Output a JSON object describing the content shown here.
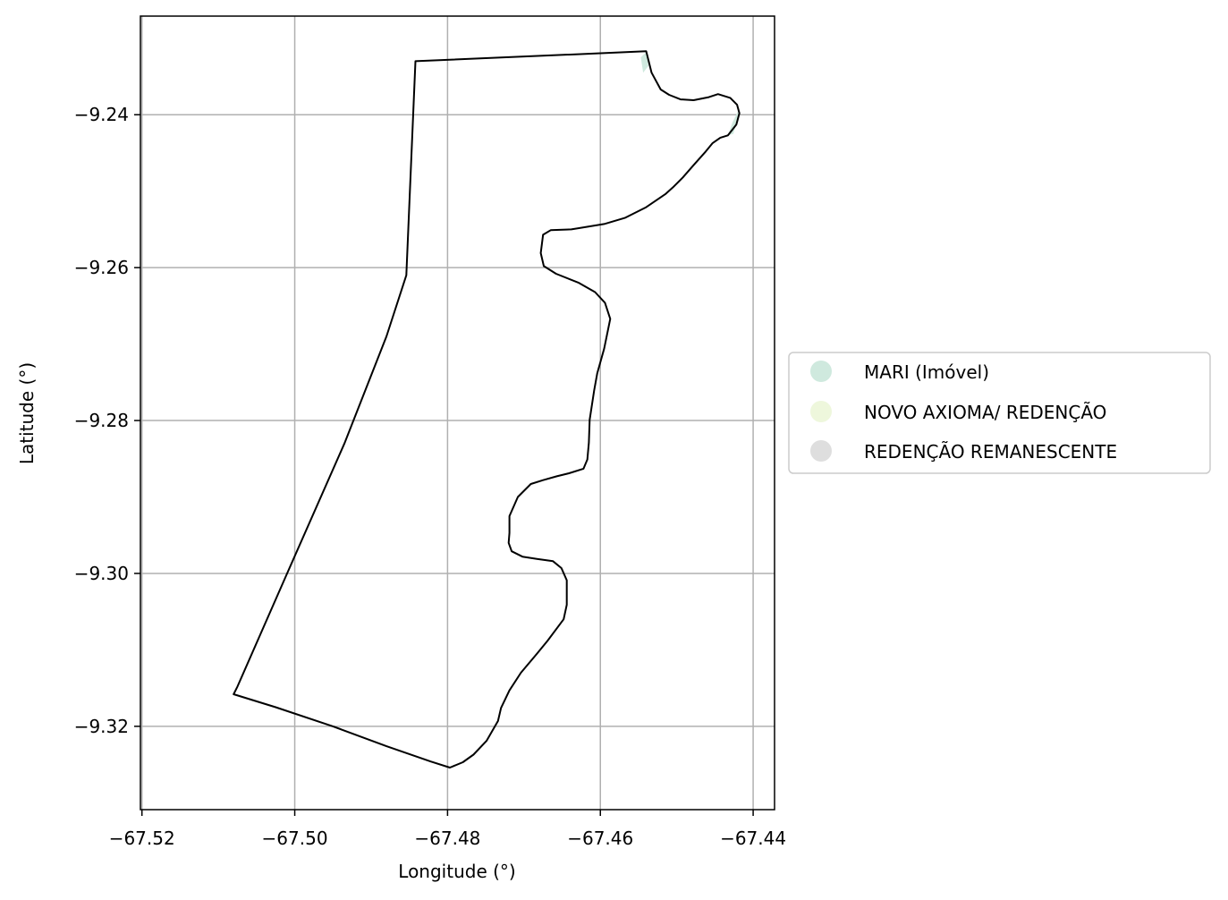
{
  "axes": {
    "xlabel": "Longitude (°)",
    "ylabel": "Latitude (°)",
    "x_ticks": [
      {
        "value": -67.52,
        "label": "−67.52"
      },
      {
        "value": -67.5,
        "label": "−67.50"
      },
      {
        "value": -67.48,
        "label": "−67.48"
      },
      {
        "value": -67.46,
        "label": "−67.46"
      },
      {
        "value": -67.44,
        "label": "−67.44"
      }
    ],
    "y_ticks": [
      {
        "value": -9.24,
        "label": "−9.24"
      },
      {
        "value": -9.26,
        "label": "−9.26"
      },
      {
        "value": -9.28,
        "label": "−9.28"
      },
      {
        "value": -9.3,
        "label": "−9.30"
      },
      {
        "value": -9.32,
        "label": "−9.32"
      }
    ],
    "xlim": [
      -67.5202,
      -67.4372
    ],
    "ylim": [
      -9.3309,
      -9.2271
    ],
    "grid": true
  },
  "legend": {
    "placement": "right",
    "items": [
      {
        "label": "MARI (Imóvel)",
        "color": "#cfe9de"
      },
      {
        "label": "NOVO AXIOMA/ REDENÇÃO",
        "color": "#eef7dc"
      },
      {
        "label": "REDENÇÃO REMANESCENTE",
        "color": "#dedede"
      }
    ]
  },
  "map_data": {
    "outline_color": "#000000",
    "boundary": [
      [
        -67.4842,
        -9.233
      ],
      [
        -67.454,
        -9.2317
      ],
      [
        -67.4533,
        -9.2345
      ],
      [
        -67.4521,
        -9.2367
      ],
      [
        -67.451,
        -9.2374
      ],
      [
        -67.4495,
        -9.238
      ],
      [
        -67.4478,
        -9.2381
      ],
      [
        -67.4458,
        -9.2377
      ],
      [
        -67.4446,
        -9.2373
      ],
      [
        -67.443,
        -9.2378
      ],
      [
        -67.4421,
        -9.2387
      ],
      [
        -67.4418,
        -9.2398
      ],
      [
        -67.4422,
        -9.2413
      ],
      [
        -67.4433,
        -9.2427
      ],
      [
        -67.4443,
        -9.243
      ],
      [
        -67.4453,
        -9.2437
      ],
      [
        -67.4462,
        -9.2448
      ],
      [
        -67.4478,
        -9.2466
      ],
      [
        -67.4492,
        -9.2482
      ],
      [
        -67.4505,
        -9.2495
      ],
      [
        -67.4515,
        -9.2504
      ],
      [
        -67.454,
        -9.2521
      ],
      [
        -67.4568,
        -9.2535
      ],
      [
        -67.4595,
        -9.2543
      ],
      [
        -67.4638,
        -9.255
      ],
      [
        -67.4665,
        -9.2551
      ],
      [
        -67.4675,
        -9.2557
      ],
      [
        -67.4678,
        -9.2581
      ],
      [
        -67.4674,
        -9.2598
      ],
      [
        -67.4658,
        -9.2608
      ],
      [
        -67.4628,
        -9.262
      ],
      [
        -67.4607,
        -9.2632
      ],
      [
        -67.4594,
        -9.2646
      ],
      [
        -67.4587,
        -9.2667
      ],
      [
        -67.4595,
        -9.2706
      ],
      [
        -67.4604,
        -9.2738
      ],
      [
        -67.4608,
        -9.276
      ],
      [
        -67.4614,
        -9.2799
      ],
      [
        -67.4615,
        -9.2829
      ],
      [
        -67.4617,
        -9.2851
      ],
      [
        -67.4622,
        -9.2863
      ],
      [
        -67.4641,
        -9.2869
      ],
      [
        -67.4657,
        -9.2873
      ],
      [
        -67.4675,
        -9.2878
      ],
      [
        -67.4691,
        -9.2883
      ],
      [
        -67.4708,
        -9.29
      ],
      [
        -67.4719,
        -9.2925
      ],
      [
        -67.4719,
        -9.2947
      ],
      [
        -67.472,
        -9.296
      ],
      [
        -67.4716,
        -9.2971
      ],
      [
        -67.4702,
        -9.2978
      ],
      [
        -67.4683,
        -9.2981
      ],
      [
        -67.4662,
        -9.2984
      ],
      [
        -67.4651,
        -9.2993
      ],
      [
        -67.4644,
        -9.3009
      ],
      [
        -67.4644,
        -9.3041
      ],
      [
        -67.4648,
        -9.306
      ],
      [
        -67.4669,
        -9.3088
      ],
      [
        -67.4683,
        -9.3105
      ],
      [
        -67.4704,
        -9.313
      ],
      [
        -67.4719,
        -9.3153
      ],
      [
        -67.473,
        -9.3176
      ],
      [
        -67.4734,
        -9.3193
      ],
      [
        -67.4749,
        -9.3219
      ],
      [
        -67.4766,
        -9.3237
      ],
      [
        -67.478,
        -9.3247
      ],
      [
        -67.4797,
        -9.3254
      ],
      [
        -67.4822,
        -9.3246
      ],
      [
        -67.488,
        -9.3226
      ],
      [
        -67.495,
        -9.32
      ],
      [
        -67.5025,
        -9.3175
      ],
      [
        -67.508,
        -9.3158
      ],
      [
        -67.5075,
        -9.3148
      ],
      [
        -67.501,
        -9.3
      ],
      [
        -67.4935,
        -9.283
      ],
      [
        -67.488,
        -9.269
      ],
      [
        -67.4854,
        -9.261
      ],
      [
        -67.4842,
        -9.233
      ]
    ],
    "highlight_parcels": [
      {
        "category": "MARI (Imóvel)",
        "points": [
          [
            -67.4418,
            -9.239
          ],
          [
            -67.4421,
            -9.2409
          ],
          [
            -67.4426,
            -9.2425
          ],
          [
            -67.4433,
            -9.2427
          ],
          [
            -67.4427,
            -9.241
          ],
          [
            -67.442,
            -9.2396
          ]
        ]
      },
      {
        "category": "MARI (Imóvel)",
        "points": [
          [
            -67.4547,
            -9.2325
          ],
          [
            -67.454,
            -9.2318
          ],
          [
            -67.4537,
            -9.2336
          ],
          [
            -67.4544,
            -9.2345
          ]
        ]
      }
    ]
  }
}
